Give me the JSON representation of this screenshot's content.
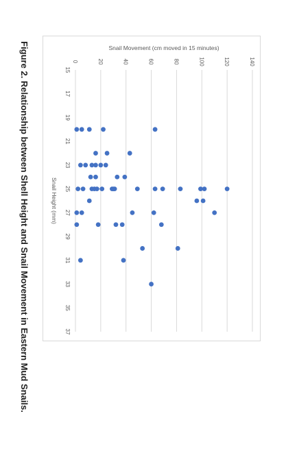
{
  "figure": {
    "caption": "Figure 2. Relationship between Shell Height and Snail Movement in Eastern Mud Snails."
  },
  "chart_data": {
    "type": "scatter",
    "title": "",
    "xlabel": "Snail Height (mm)",
    "ylabel": "Snail Movement (cm moved in 15 minutes)",
    "xlim": [
      15,
      37
    ],
    "ylim": [
      0,
      140
    ],
    "x_ticks": [
      15,
      17,
      19,
      21,
      23,
      25,
      27,
      29,
      31,
      33,
      35,
      37
    ],
    "y_ticks": [
      0,
      20,
      40,
      60,
      80,
      100,
      120,
      140
    ],
    "grid": true,
    "orientation": "rotated 90 degrees clockwise",
    "marker_color": "#4472c4",
    "points": [
      {
        "x": 20,
        "y": 1
      },
      {
        "x": 20,
        "y": 5
      },
      {
        "x": 20,
        "y": 11
      },
      {
        "x": 20,
        "y": 22
      },
      {
        "x": 20,
        "y": 63
      },
      {
        "x": 22,
        "y": 16
      },
      {
        "x": 22,
        "y": 25
      },
      {
        "x": 22,
        "y": 43
      },
      {
        "x": 23,
        "y": 4
      },
      {
        "x": 23,
        "y": 8
      },
      {
        "x": 23,
        "y": 13
      },
      {
        "x": 23,
        "y": 16
      },
      {
        "x": 23,
        "y": 20
      },
      {
        "x": 23,
        "y": 24
      },
      {
        "x": 24,
        "y": 12
      },
      {
        "x": 24,
        "y": 16
      },
      {
        "x": 24,
        "y": 33
      },
      {
        "x": 24,
        "y": 39
      },
      {
        "x": 25,
        "y": 2
      },
      {
        "x": 25,
        "y": 6
      },
      {
        "x": 25,
        "y": 13
      },
      {
        "x": 25,
        "y": 15
      },
      {
        "x": 25,
        "y": 17
      },
      {
        "x": 25,
        "y": 21
      },
      {
        "x": 25,
        "y": 29
      },
      {
        "x": 25,
        "y": 30
      },
      {
        "x": 25,
        "y": 31
      },
      {
        "x": 25,
        "y": 49
      },
      {
        "x": 25,
        "y": 63
      },
      {
        "x": 25,
        "y": 69
      },
      {
        "x": 25,
        "y": 83
      },
      {
        "x": 25,
        "y": 99
      },
      {
        "x": 25,
        "y": 102
      },
      {
        "x": 25,
        "y": 120
      },
      {
        "x": 26,
        "y": 11
      },
      {
        "x": 26,
        "y": 96
      },
      {
        "x": 26,
        "y": 101
      },
      {
        "x": 27,
        "y": 1
      },
      {
        "x": 27,
        "y": 5
      },
      {
        "x": 27,
        "y": 45
      },
      {
        "x": 27,
        "y": 62
      },
      {
        "x": 27,
        "y": 110
      },
      {
        "x": 28,
        "y": 1
      },
      {
        "x": 28,
        "y": 18
      },
      {
        "x": 28,
        "y": 32
      },
      {
        "x": 28,
        "y": 37
      },
      {
        "x": 28,
        "y": 68
      },
      {
        "x": 30,
        "y": 53
      },
      {
        "x": 30,
        "y": 81
      },
      {
        "x": 31,
        "y": 4
      },
      {
        "x": 31,
        "y": 38
      },
      {
        "x": 33,
        "y": 60
      }
    ]
  }
}
